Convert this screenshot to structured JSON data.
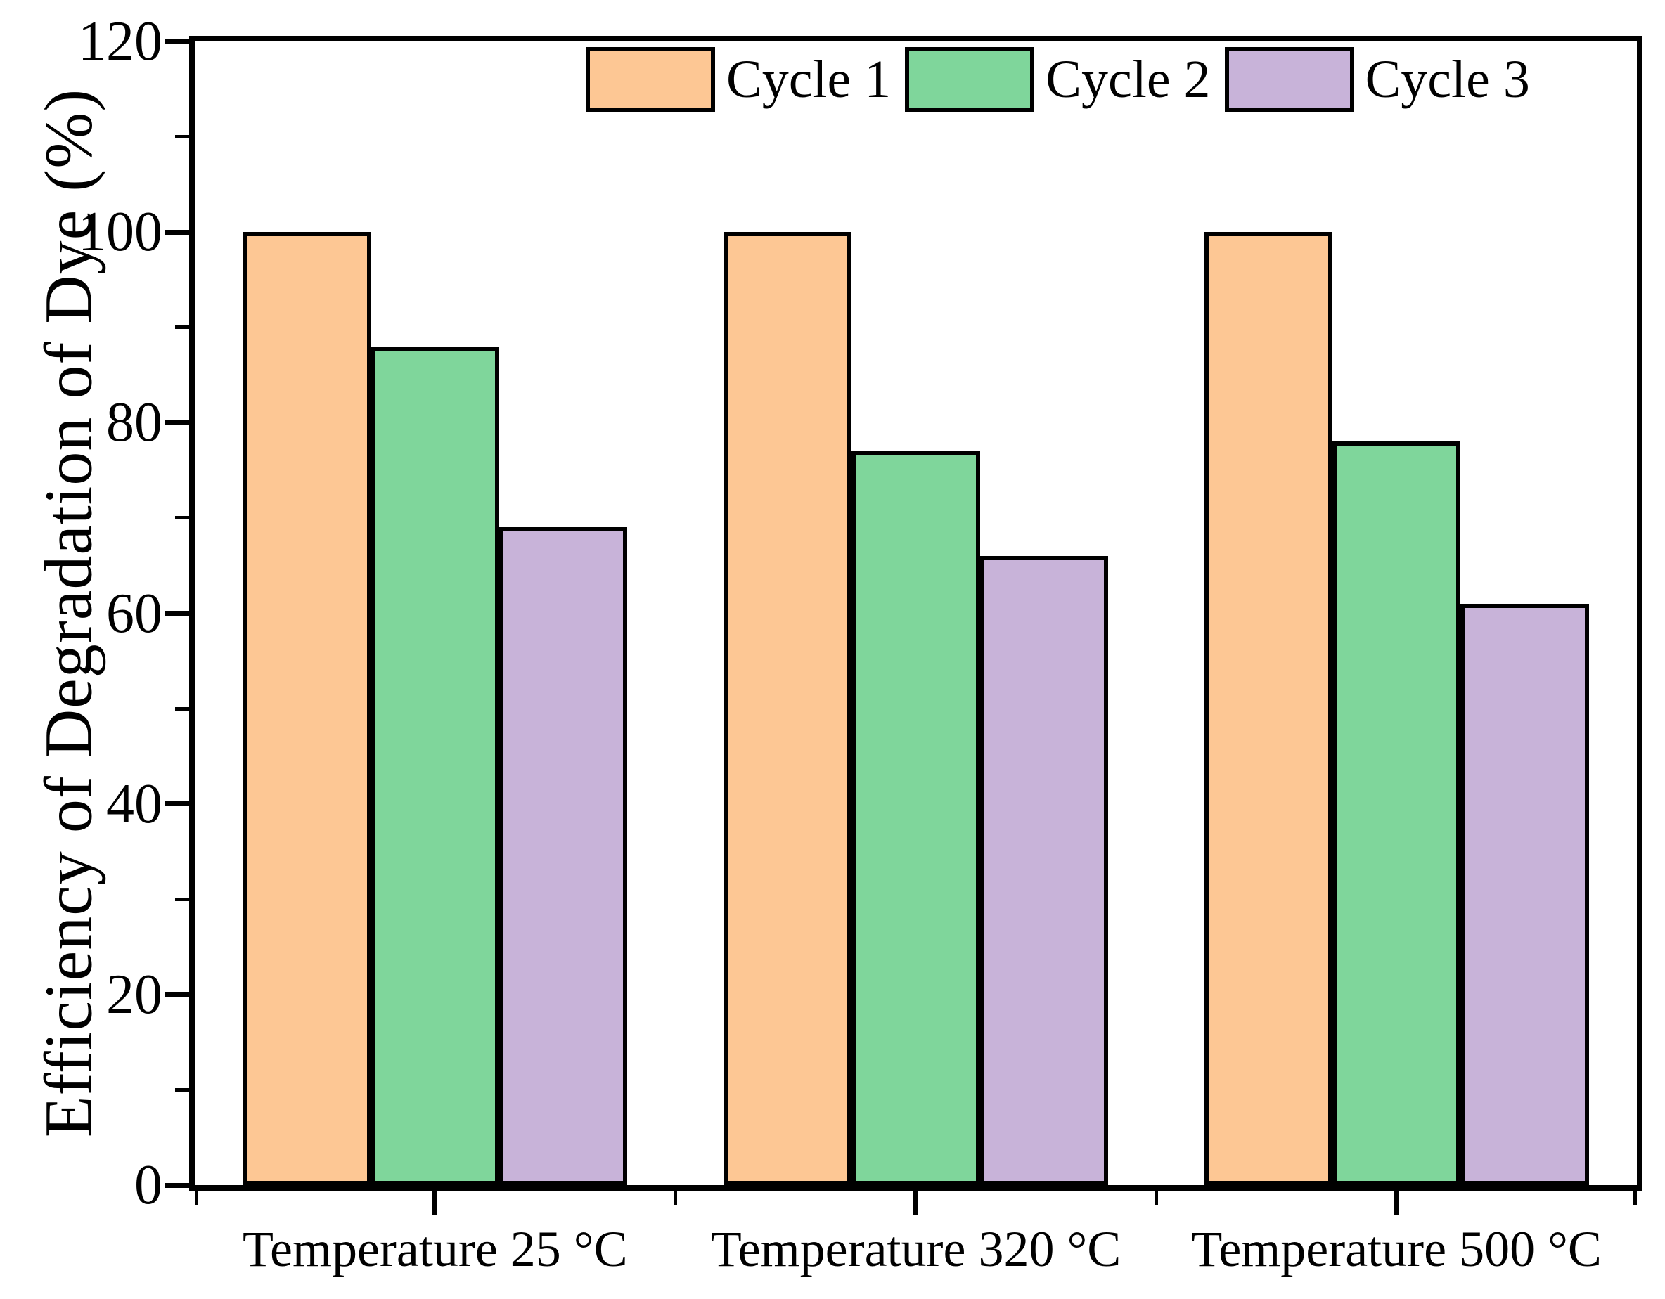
{
  "chart_data": {
    "type": "bar",
    "ylabel": "Efficiency of Degradation of Dye (%)",
    "xlabel": "",
    "categories": [
      "Temperature 25 °C",
      "Temperature 320 °C",
      "Temperature 500 °C"
    ],
    "series": [
      {
        "name": "Cycle 1",
        "color": "#FDC794",
        "values": [
          100,
          100,
          100
        ]
      },
      {
        "name": "Cycle 2",
        "color": "#7FD69B",
        "values": [
          88,
          77,
          78
        ]
      },
      {
        "name": "Cycle 3",
        "color": "#C8B3D9",
        "values": [
          69,
          66,
          61
        ]
      }
    ],
    "ylim": [
      0,
      120
    ],
    "yticks": [
      0,
      20,
      40,
      60,
      80,
      100,
      120
    ],
    "yticks_minor": [
      10,
      30,
      50,
      70,
      90,
      110
    ],
    "grid": false,
    "legend_position": "top-inside",
    "bar_outline_color": "#000000",
    "axis_color": "#000000",
    "background_color": "#FFFFFF"
  }
}
